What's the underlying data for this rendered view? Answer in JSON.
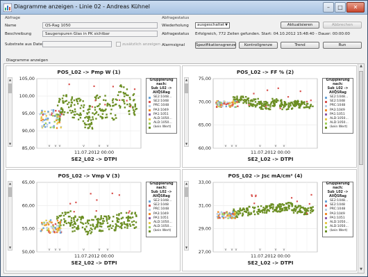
{
  "window": {
    "title": "Diagramme anzeigen - Linie 02 - Andreas Kühnel",
    "btn_minimize": "–",
    "btn_maximize": "□",
    "btn_close": "✕"
  },
  "form": {
    "abfrage_header": "Abfrage",
    "name_label": "Name",
    "name_value": "QS-Rag 1050",
    "beschreibung_label": "Beschreibung",
    "beschreibung_value": "Saugerspuren Glas in PK sichtbar",
    "substrate_label": "Substrate aus Datei",
    "zusaetzlich_label": "zusätzlich anzeigen",
    "abfragestatus_header": "Abfragestatus",
    "wiederholung_label": "Wiederholung",
    "wiederholung_value": "ausgeschaltet",
    "aktualisieren_button": "Aktualisieren",
    "abbrechen_button": "Abbrechen",
    "abfragestatus_label": "Abfragestatus",
    "abfragestatus_value": "Erfolgreich, 772 Zeilen gefunden. Start: 04.10.2012 15:48:40 - Dauer: 00:00:00",
    "alarmsignal_label": "Alarmsignal",
    "spezifikationsgrenze_button": "Spezifikationsgrenze",
    "kontrollgrenze_button": "Kontrollgrenze",
    "trend_button": "Trend",
    "run_button": "Run",
    "diagramme_label": "Diagramme anzeigen"
  },
  "legend": {
    "title_lines": [
      "Gruppierung",
      "nach:",
      "Sub_L02 ->",
      "AllQSRag"
    ],
    "items": [
      {
        "label": "SE2:1048...",
        "color": "#6aa3d8"
      },
      {
        "label": "SE2:1048",
        "color": "#d9534f"
      },
      {
        "label": "PRC:1048",
        "color": "#b5cde6"
      },
      {
        "label": "PA3:1049",
        "color": "#f28c28"
      },
      {
        "label": "PA1:1051",
        "color": "#8e5aa8"
      },
      {
        "label": "ALD:1050...",
        "color": "#e8c84a"
      },
      {
        "label": "ALD:1050...",
        "color": "#9fcf5a"
      },
      {
        "label": "(kein Wert)",
        "color": "#6b8e23"
      }
    ]
  },
  "charts": [
    {
      "title": "POS_L02 -> Pmp W (1)",
      "xlabel": "SE2_L02 -> DTPI",
      "xtick": "11.07.2012 00:00",
      "yticks": [
        "105,00",
        "100,00",
        "95,00",
        "90,00",
        "85,00"
      ],
      "ylim": [
        85,
        105
      ]
    },
    {
      "title": "POS_L02 -> FF % (2)",
      "xlabel": "SE2_L02 -> DTPI",
      "xtick": "11.07.2012 00:00",
      "yticks": [
        "75,00",
        "70,00",
        "65,00",
        "60,00"
      ],
      "ylim": [
        60,
        75
      ]
    },
    {
      "title": "POS_L02 -> Vmp V (3)",
      "xlabel": "SE2_L02 -> DTPI",
      "xtick": "11.07.2012 00:00",
      "yticks": [
        "65,00",
        "60,00",
        "55,00",
        "50,00"
      ],
      "ylim": [
        50,
        65
      ]
    },
    {
      "title": "POS_L02 -> Jsc mA/cm² (4)",
      "xlabel": "SE2_L02 -> DTPI",
      "xtick": "11.07.2012 00:00",
      "yticks": [
        "33,00",
        "31,00",
        "29,00",
        "27,00"
      ],
      "ylim": [
        27,
        33
      ]
    }
  ],
  "chart_data": [
    {
      "type": "scatter",
      "title": "POS_L02 -> Pmp W (1)",
      "xlabel": "SE2_L02 -> DTPI",
      "ylim": [
        85,
        105
      ]
    },
    {
      "type": "scatter",
      "title": "POS_L02 -> FF % (2)",
      "xlabel": "SE2_L02 -> DTPI",
      "ylim": [
        60,
        75
      ]
    },
    {
      "type": "scatter",
      "title": "POS_L02 -> Vmp V (3)",
      "xlabel": "SE2_L02 -> DTPI",
      "ylim": [
        50,
        65
      ]
    },
    {
      "type": "scatter",
      "title": "POS_L02 -> Jsc mA/cm² (4)",
      "xlabel": "SE2_L02 -> DTPI",
      "ylim": [
        27,
        33
      ]
    }
  ]
}
